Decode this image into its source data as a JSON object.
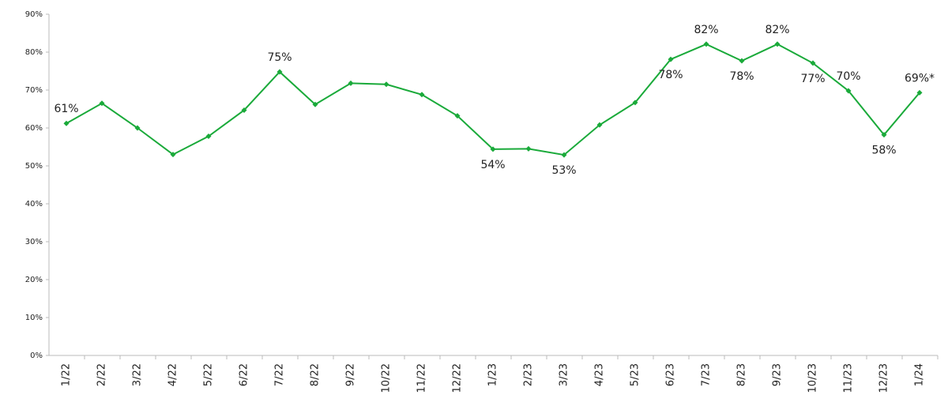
{
  "chart_data": {
    "type": "line",
    "categories": [
      "1/22",
      "2/22",
      "3/22",
      "4/22",
      "5/22",
      "6/22",
      "7/22",
      "8/22",
      "9/22",
      "10/22",
      "11/22",
      "12/22",
      "1/23",
      "2/23",
      "3/23",
      "4/23",
      "5/23",
      "6/23",
      "7/23",
      "8/23",
      "9/23",
      "10/23",
      "11/23",
      "12/23",
      "1/24"
    ],
    "series": [
      {
        "color": "#1aaa3a",
        "values": [
          61.2,
          66.5,
          60.0,
          53.0,
          57.8,
          64.7,
          74.8,
          66.2,
          71.8,
          71.5,
          68.8,
          63.2,
          54.4,
          54.5,
          52.9,
          60.8,
          66.7,
          78.1,
          82.1,
          77.7,
          82.1,
          77.1,
          69.8,
          58.2,
          69.3
        ],
        "value_labels": [
          "61%",
          null,
          null,
          null,
          null,
          null,
          "75%",
          null,
          null,
          null,
          null,
          null,
          "54%",
          null,
          "53%",
          null,
          null,
          "78%",
          "82%",
          "78%",
          "82%",
          "77%",
          "70%",
          "58%",
          "69%*"
        ]
      }
    ],
    "ylim": [
      0,
      90
    ],
    "yticks": [
      {
        "value": 0,
        "label": "0%"
      },
      {
        "value": 10,
        "label": "10%"
      },
      {
        "value": 20,
        "label": "20%"
      },
      {
        "value": 30,
        "label": "30%"
      },
      {
        "value": 40,
        "label": "40%"
      },
      {
        "value": 50,
        "label": "50%"
      },
      {
        "value": 60,
        "label": "60%"
      },
      {
        "value": 70,
        "label": "70%"
      },
      {
        "value": 80,
        "label": "80%"
      },
      {
        "value": 90,
        "label": "90%"
      }
    ],
    "grid": false
  }
}
